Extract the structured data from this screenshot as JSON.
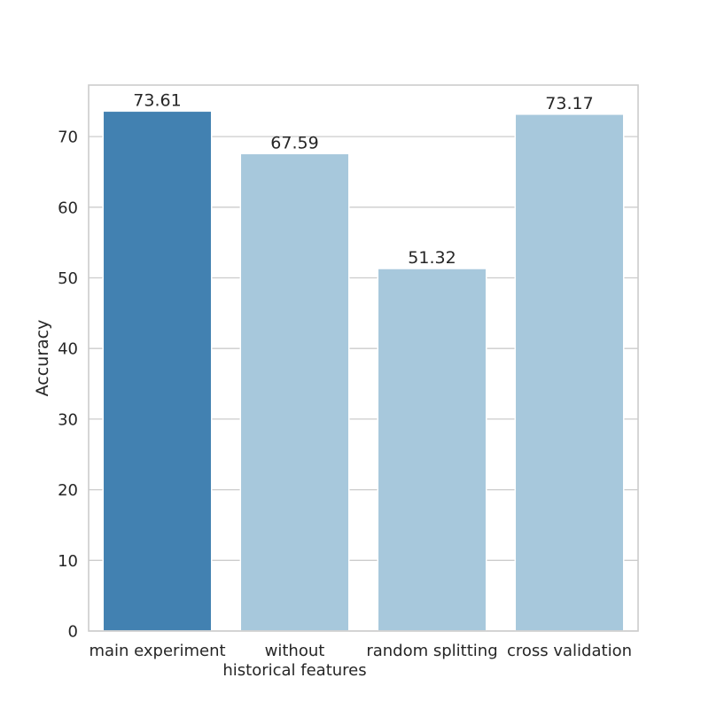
{
  "chart_data": {
    "type": "bar",
    "title": "",
    "xlabel": "",
    "ylabel": "Accuracy",
    "ylim": [
      0,
      77.29
    ],
    "yticks": [
      0,
      10,
      20,
      30,
      40,
      50,
      60,
      70
    ],
    "grid": "horizontal",
    "categories": [
      [
        "main experiment"
      ],
      [
        "without",
        "historical features"
      ],
      [
        "random splitting"
      ],
      [
        "cross validation"
      ]
    ],
    "values": [
      73.61,
      67.59,
      51.32,
      73.17
    ],
    "value_labels": [
      "73.61",
      "67.59",
      "51.32",
      "73.17"
    ],
    "colors": [
      "#4281b1",
      "#a7c8dc",
      "#a7c8dc",
      "#a7c8dc"
    ],
    "grid_color": "#cccccc",
    "frame_color": "#cccccc"
  }
}
